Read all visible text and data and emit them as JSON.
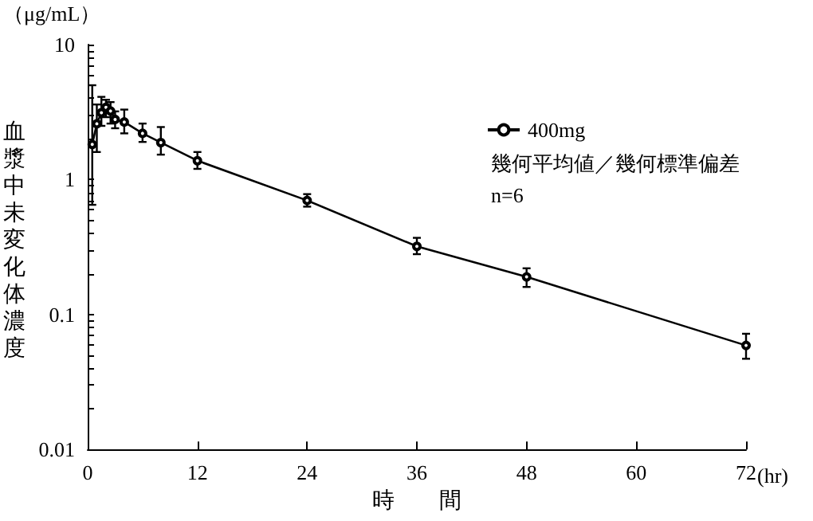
{
  "chart_data": {
    "type": "line",
    "xlabel": "時　　間",
    "ylabel": "血漿中未変化体濃度",
    "annotations": [
      "（μg/mL）",
      "(hr)",
      "幾何平均値／幾何標準偏差",
      "n=6"
    ],
    "x": [
      0.5,
      1,
      1.5,
      2,
      2.5,
      3,
      4,
      6,
      8,
      12,
      24,
      36,
      48,
      72
    ],
    "series": [
      {
        "name": "400mg",
        "color": "#000000",
        "values": [
          1.82,
          2.59,
          3.13,
          3.43,
          3.22,
          2.79,
          2.67,
          2.2,
          1.88,
          1.38,
          0.7,
          0.32,
          0.19,
          0.059
        ],
        "errors": [
          [
            0.65,
            5.0
          ],
          [
            1.6,
            3.6
          ],
          [
            2.5,
            4.1
          ],
          [
            2.9,
            3.9
          ],
          [
            2.6,
            3.75
          ],
          [
            2.4,
            3.2
          ],
          [
            2.2,
            3.3
          ],
          [
            1.9,
            2.6
          ],
          [
            1.53,
            2.45
          ],
          [
            1.2,
            1.6
          ],
          [
            0.63,
            0.78
          ],
          [
            0.28,
            0.37
          ],
          [
            0.16,
            0.22
          ],
          [
            0.047,
            0.072
          ]
        ]
      }
    ],
    "xlim": [
      0,
      72
    ],
    "xticks": [
      0,
      12,
      24,
      36,
      48,
      60,
      72
    ],
    "ylim": [
      0.01,
      10
    ],
    "yticks": [
      0.01,
      {
        "value": 0.02,
        "label": null
      },
      {
        "value": 0.03,
        "label": null
      },
      {
        "value": 0.04,
        "label": null
      },
      {
        "value": 0.05,
        "label": null
      },
      {
        "value": 0.06,
        "label": null
      },
      {
        "value": 0.07,
        "label": null
      },
      {
        "value": 0.08,
        "label": null
      },
      {
        "value": 0.09,
        "label": null
      },
      0.1,
      {
        "value": 0.2,
        "label": null
      },
      {
        "value": 0.3,
        "label": null
      },
      {
        "value": 0.4,
        "label": null
      },
      {
        "value": 0.5,
        "label": null
      },
      {
        "value": 0.6,
        "label": null
      },
      {
        "value": 0.7,
        "label": null
      },
      {
        "value": 0.8,
        "label": null
      },
      {
        "value": 0.9,
        "label": null
      },
      1,
      {
        "value": 2,
        "label": null
      },
      {
        "value": 3,
        "label": null
      },
      {
        "value": 4,
        "label": null
      },
      {
        "value": 5,
        "label": null
      },
      {
        "value": 6,
        "label": null
      },
      {
        "value": 7,
        "label": null
      },
      {
        "value": 8,
        "label": null
      },
      {
        "value": 9,
        "label": null
      },
      10
    ],
    "log": "y",
    "grid": false,
    "legend": "top right",
    "marker": "circle",
    "line_style": "solid"
  }
}
